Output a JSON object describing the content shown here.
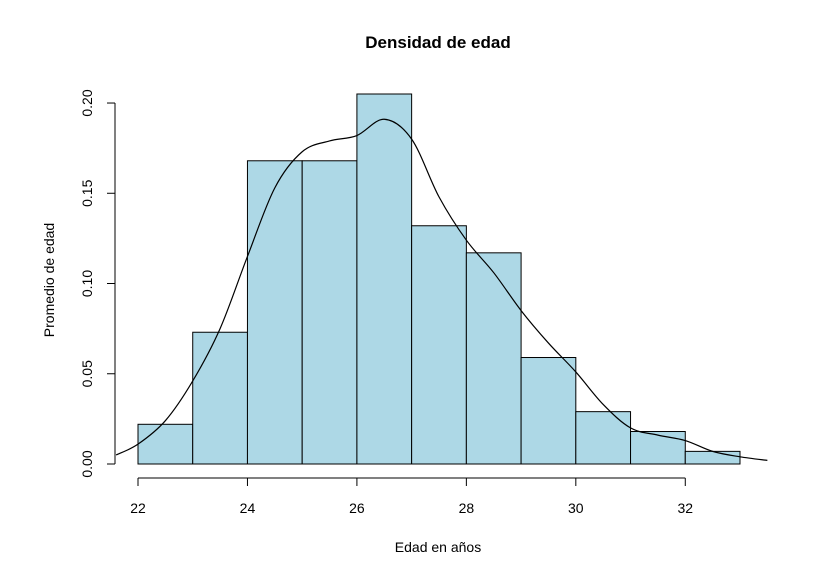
{
  "chart_data": {
    "type": "bar",
    "title": "Densidad de edad",
    "xlabel": "Edad en años",
    "ylabel": "Promedio de edad",
    "bin_edges": [
      22,
      23,
      24,
      25,
      26,
      27,
      28,
      29,
      30,
      31,
      32,
      33
    ],
    "values": [
      0.022,
      0.073,
      0.168,
      0.168,
      0.205,
      0.132,
      0.117,
      0.059,
      0.029,
      0.018,
      0.007
    ],
    "bar_color": "#ADD8E6",
    "xlim": [
      22,
      33
    ],
    "ylim": [
      0,
      0.205
    ],
    "xticks": [
      22,
      24,
      26,
      28,
      30,
      32
    ],
    "yticks": [
      "0.00",
      "0.05",
      "0.10",
      "0.15",
      "0.20"
    ],
    "density_curve": {
      "x": [
        21.6,
        22.0,
        22.5,
        23.0,
        23.5,
        24.0,
        24.5,
        25.0,
        25.5,
        26.0,
        26.5,
        27.0,
        27.5,
        28.0,
        28.5,
        29.0,
        29.5,
        30.0,
        30.5,
        31.0,
        31.5,
        32.0,
        32.5,
        33.0,
        33.5
      ],
      "y": [
        0.005,
        0.011,
        0.024,
        0.046,
        0.075,
        0.115,
        0.153,
        0.173,
        0.179,
        0.182,
        0.191,
        0.18,
        0.148,
        0.124,
        0.106,
        0.085,
        0.067,
        0.051,
        0.033,
        0.02,
        0.016,
        0.013,
        0.007,
        0.004,
        0.002
      ]
    },
    "grid": false,
    "legend": "none"
  }
}
